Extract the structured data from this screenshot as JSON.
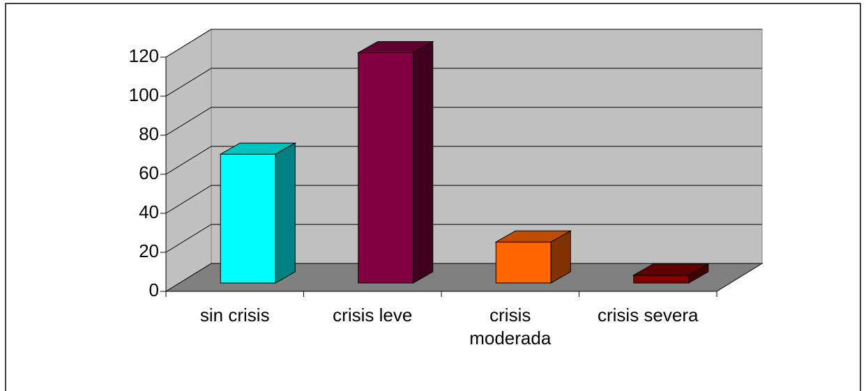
{
  "chart_data": {
    "type": "bar3d",
    "categories": [
      "sin crisis",
      "crisis leve",
      "crisis moderada",
      "crisis severa"
    ],
    "values": [
      66,
      118,
      21,
      4
    ],
    "colors": [
      "#00ffff",
      "#800040",
      "#ff6600",
      "#800000"
    ],
    "ylim": [
      0,
      120
    ],
    "yticks": [
      0,
      20,
      40,
      60,
      80,
      100,
      120
    ],
    "grid": true
  }
}
